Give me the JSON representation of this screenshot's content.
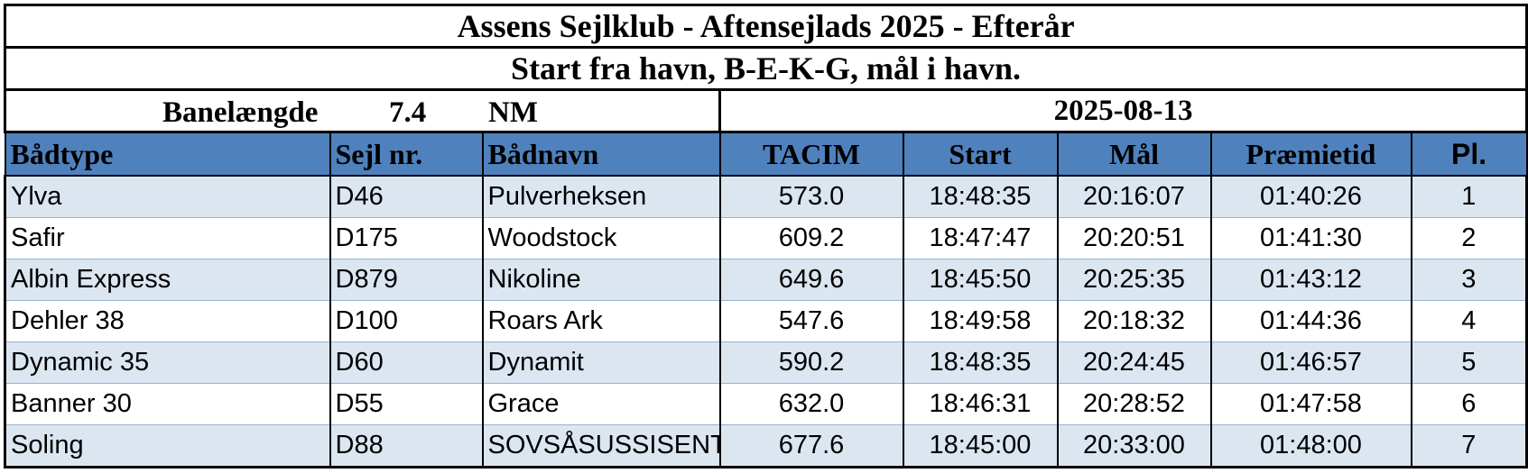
{
  "header": {
    "title": "Assens Sejlklub - Aftensejlads 2025 - Efterår",
    "subtitle": "Start fra havn, B-E-K-G, mål i havn.",
    "course_label": "Banelængde",
    "course_length": 7.4,
    "course_unit": "NM",
    "date": "2025-08-13"
  },
  "table": {
    "columns": [
      "Bådtype",
      "Sejl nr.",
      "Bådnavn",
      "TACIM",
      "Start",
      "Mål",
      "Præmietid",
      "Pl."
    ],
    "rows": [
      [
        "Ylva",
        "D46",
        "Pulverheksen",
        "573.0",
        "18:48:35",
        "20:16:07",
        "01:40:26",
        1
      ],
      [
        "Safir",
        "D175",
        "Woodstock",
        "609.2",
        "18:47:47",
        "20:20:51",
        "01:41:30",
        2
      ],
      [
        "Albin Express",
        "D879",
        "Nikoline",
        "649.6",
        "18:45:50",
        "20:25:35",
        "01:43:12",
        3
      ],
      [
        "Dehler 38",
        "D100",
        "Roars Ark",
        "547.6",
        "18:49:58",
        "20:18:32",
        "01:44:36",
        4
      ],
      [
        "Dynamic 35",
        "D60",
        "Dynamit",
        "590.2",
        "18:48:35",
        "20:24:45",
        "01:46:57",
        5
      ],
      [
        "Banner 30",
        "D55",
        "Grace",
        "632.0",
        "18:46:31",
        "20:28:52",
        "01:47:58",
        6
      ],
      [
        "Soling",
        "D88",
        "SOVSÅSUSSISENT",
        "677.6",
        "18:45:00",
        "20:33:00",
        "01:48:00",
        7
      ]
    ]
  }
}
